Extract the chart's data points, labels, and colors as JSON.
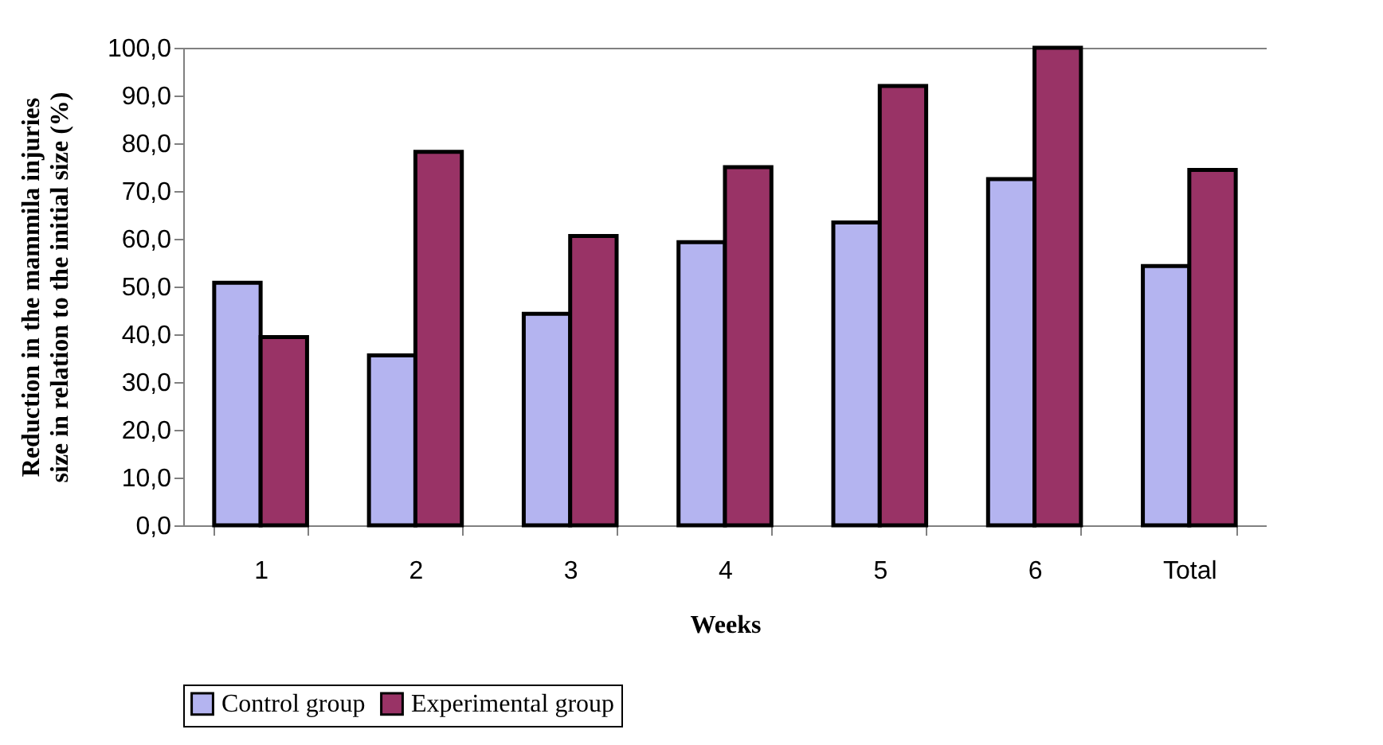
{
  "chart_data": {
    "type": "bar",
    "xlabel": "Weeks",
    "ylabel": "Reduction in the mammila injuries\nsize in relation to the initial size (%)",
    "categories": [
      "1",
      "2",
      "3",
      "4",
      "5",
      "6",
      "Total"
    ],
    "series": [
      {
        "name": "Control group",
        "color": "#b4b4f0",
        "values": [
          50.8,
          35.6,
          44.3,
          59.3,
          63.4,
          72.5,
          54.3
        ]
      },
      {
        "name": "Experimental group",
        "color": "#993366",
        "values": [
          39.4,
          78.2,
          60.6,
          75.0,
          92.0,
          100.0,
          74.4
        ]
      }
    ],
    "ylim": [
      0,
      100
    ],
    "yticks": [
      {
        "value": 0,
        "label": "0,0"
      },
      {
        "value": 10,
        "label": "10,0"
      },
      {
        "value": 20,
        "label": "20,0"
      },
      {
        "value": 30,
        "label": "30,0"
      },
      {
        "value": 40,
        "label": "40,0"
      },
      {
        "value": 50,
        "label": "50,0"
      },
      {
        "value": 60,
        "label": "60,0"
      },
      {
        "value": 70,
        "label": "70,0"
      },
      {
        "value": 80,
        "label": "80,0"
      },
      {
        "value": 90,
        "label": "90,0"
      },
      {
        "value": 100,
        "label": "100,0"
      }
    ],
    "grid": false,
    "legend": "bottom"
  }
}
